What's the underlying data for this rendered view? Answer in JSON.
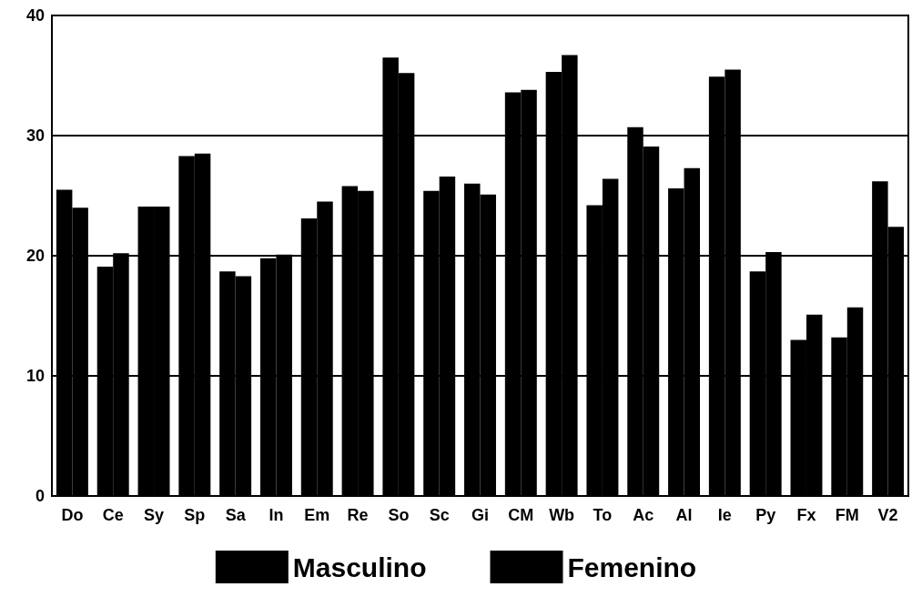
{
  "chart_data": {
    "type": "bar",
    "categories": [
      "Do",
      "Ce",
      "Sy",
      "Sp",
      "Sa",
      "In",
      "Em",
      "Re",
      "So",
      "Sc",
      "Gi",
      "CM",
      "Wb",
      "To",
      "Ac",
      "Al",
      "Ie",
      "Py",
      "Fx",
      "FM",
      "V2"
    ],
    "series": [
      {
        "name": "Masculino",
        "color": "#000000",
        "values": [
          25.5,
          19.1,
          24.1,
          28.3,
          18.7,
          19.8,
          23.1,
          25.8,
          36.5,
          25.4,
          26.0,
          33.6,
          35.3,
          24.2,
          30.7,
          25.6,
          34.9,
          18.7,
          13.0,
          13.2,
          26.2
        ]
      },
      {
        "name": "Femenino",
        "color": "#000000",
        "values": [
          24.0,
          20.2,
          24.1,
          28.5,
          18.3,
          20.1,
          24.5,
          25.4,
          35.2,
          26.6,
          25.1,
          33.8,
          36.7,
          26.4,
          29.1,
          27.3,
          35.5,
          20.3,
          15.1,
          15.7,
          22.4
        ]
      }
    ],
    "ylim": [
      0,
      40
    ],
    "yticks": [
      0,
      10,
      20,
      30,
      40
    ],
    "grid": "y",
    "legend": "bottom"
  }
}
